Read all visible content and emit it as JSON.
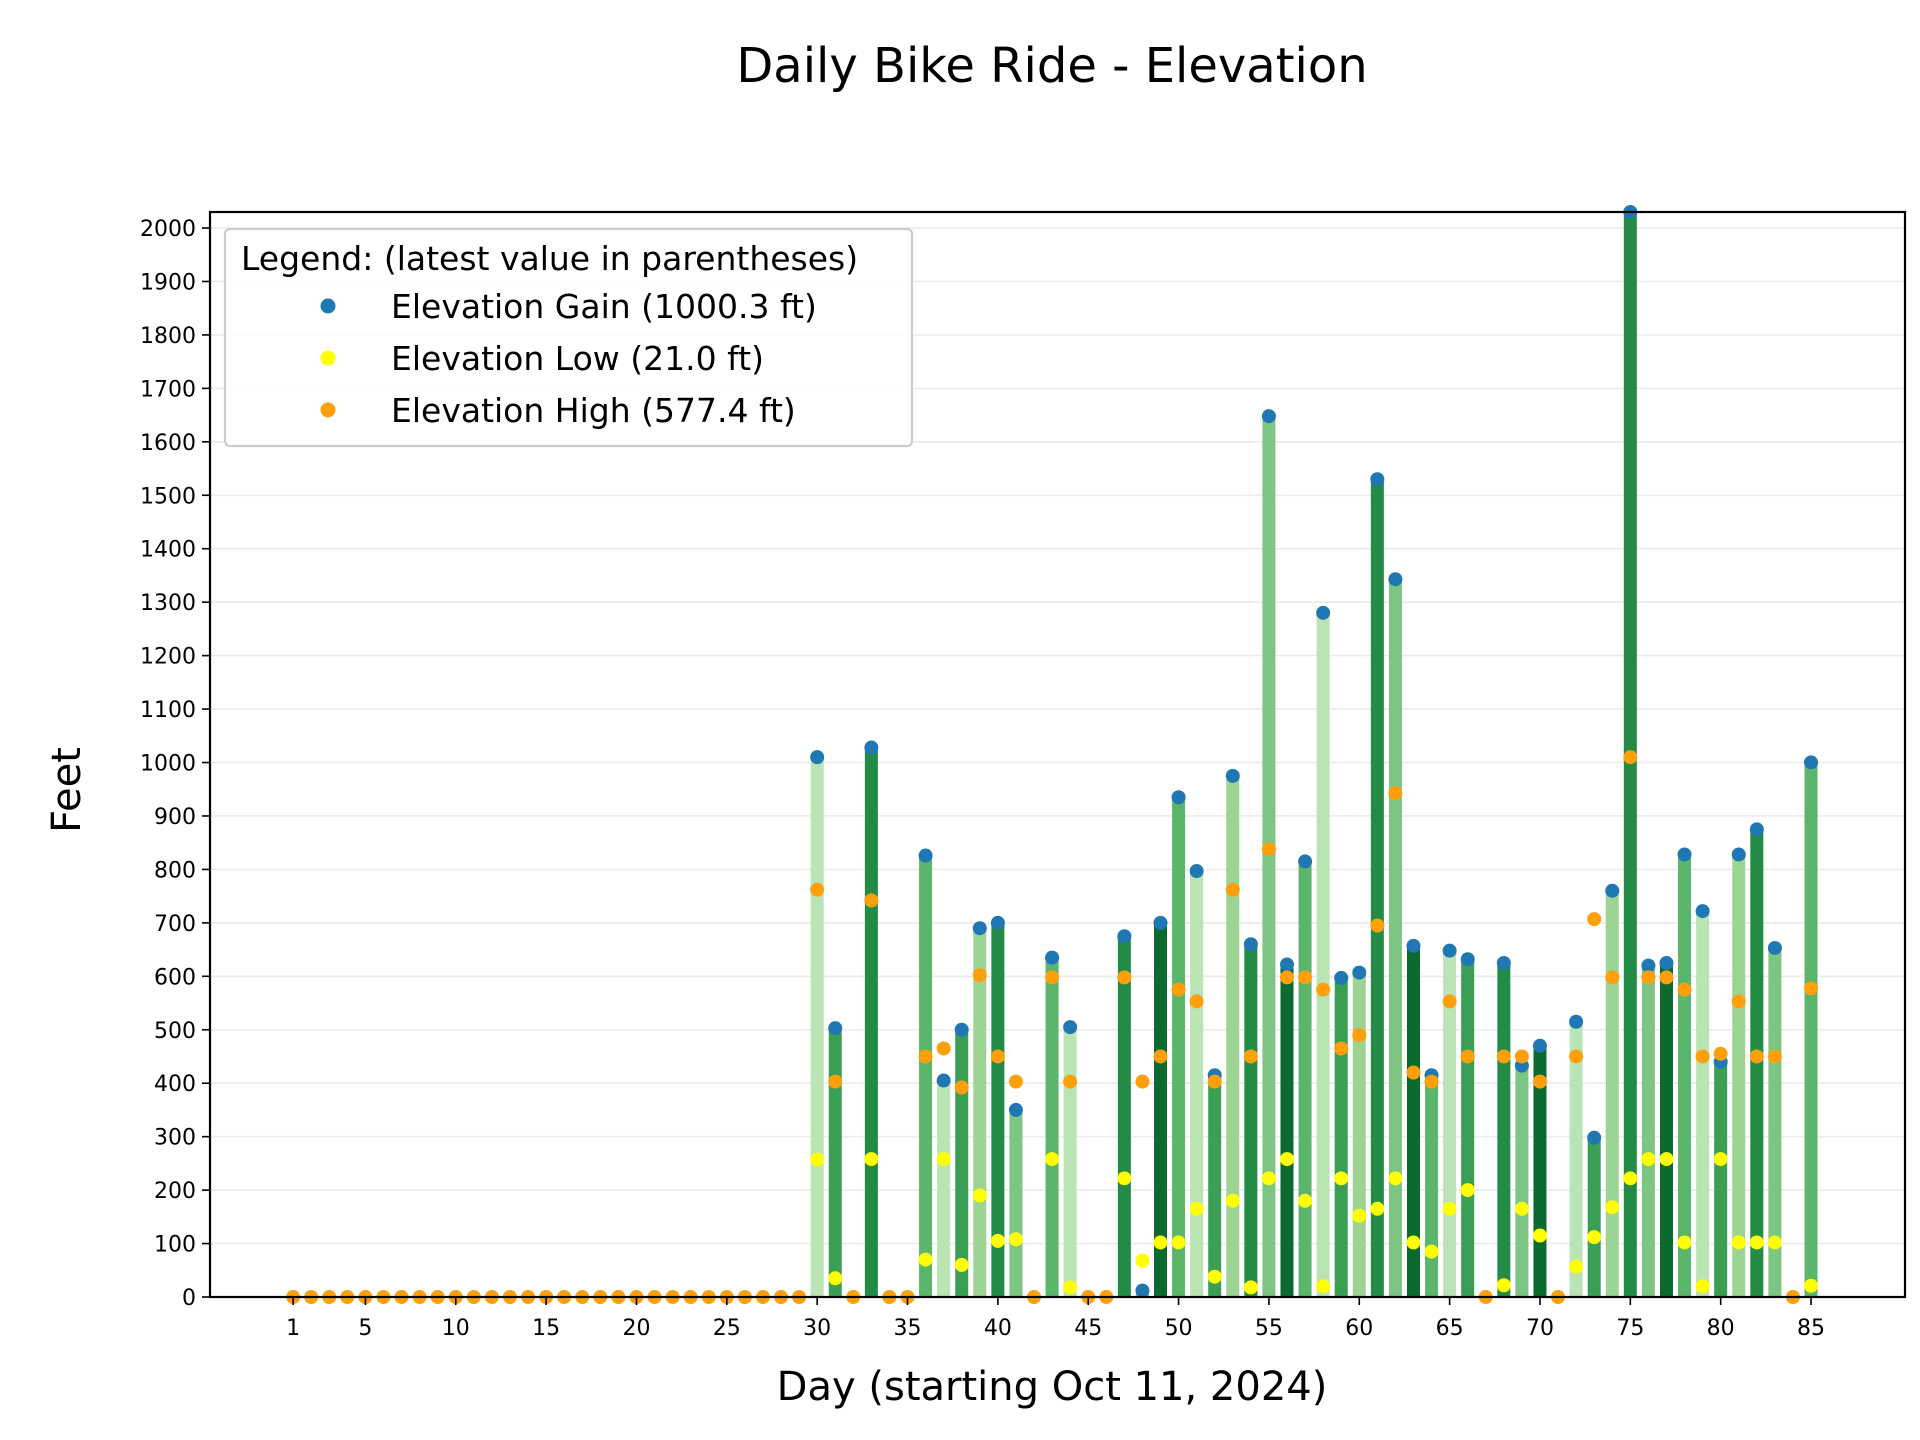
{
  "chart_data": {
    "type": "bar",
    "title": "Daily Bike Ride - Elevation",
    "xlabel": "Day (starting Oct 11, 2024)",
    "ylabel": "Feet",
    "xlim": [
      -3.6,
      90.2
    ],
    "ylim": [
      0,
      2030
    ],
    "x_ticks": [
      1,
      5,
      10,
      15,
      20,
      25,
      30,
      35,
      40,
      45,
      50,
      55,
      60,
      65,
      70,
      75,
      80,
      85
    ],
    "y_ticks": [
      0,
      100,
      200,
      300,
      400,
      500,
      600,
      700,
      800,
      900,
      1000,
      1100,
      1200,
      1300,
      1400,
      1500,
      1600,
      1700,
      1800,
      1900,
      2000
    ],
    "grid": "horizontal",
    "legend": {
      "title": "Legend: (latest value in parentheses)",
      "placement": "upper-left",
      "entries": [
        {
          "label": "Elevation Gain (1000.3 ft)",
          "color": "#1f77b4"
        },
        {
          "label": "Elevation Low (21.0 ft)",
          "color": "#ffff00"
        },
        {
          "label": "Elevation High (577.4 ft)",
          "color": "#ff9f0a"
        }
      ]
    },
    "bar_colors": [
      "#0b6b2e",
      "#238b45",
      "#3a9e55",
      "#5bb56b",
      "#7cc582",
      "#9dd494",
      "#bae4b3"
    ],
    "days": [
      1,
      2,
      3,
      4,
      5,
      6,
      7,
      8,
      9,
      10,
      11,
      12,
      13,
      14,
      15,
      16,
      17,
      18,
      19,
      20,
      21,
      22,
      23,
      24,
      25,
      26,
      27,
      28,
      29,
      30,
      31,
      32,
      33,
      34,
      35,
      36,
      37,
      38,
      39,
      40,
      41,
      42,
      43,
      44,
      45,
      46,
      47,
      48,
      49,
      50,
      51,
      52,
      53,
      54,
      55,
      56,
      57,
      58,
      59,
      60,
      61,
      62,
      63,
      64,
      65,
      66,
      67,
      68,
      69,
      70,
      71,
      72,
      73,
      74,
      75,
      76,
      77,
      78,
      79,
      80,
      81,
      82,
      83,
      84,
      85
    ],
    "series": [
      {
        "name": "Elevation Gain",
        "values": [
          0,
          0,
          0,
          0,
          0,
          0,
          0,
          0,
          0,
          0,
          0,
          0,
          0,
          0,
          0,
          0,
          0,
          0,
          0,
          0,
          0,
          0,
          0,
          0,
          0,
          0,
          0,
          0,
          0,
          1010,
          503,
          0,
          1028,
          0,
          0,
          826,
          405,
          500,
          690,
          700,
          350,
          0,
          635,
          505,
          0,
          0,
          675,
          12,
          700,
          935,
          797,
          415,
          975,
          660,
          1648,
          622,
          815,
          1280,
          597,
          607,
          1530,
          1343,
          657,
          415,
          648,
          632,
          0,
          625,
          433,
          470,
          0,
          515,
          298,
          760,
          2030,
          620,
          625,
          828,
          722,
          440,
          828,
          875,
          653,
          0,
          1000.3
        ]
      },
      {
        "name": "Elevation Low",
        "values": [
          0,
          0,
          0,
          0,
          0,
          0,
          0,
          0,
          0,
          0,
          0,
          0,
          0,
          0,
          0,
          0,
          0,
          0,
          0,
          0,
          0,
          0,
          0,
          0,
          0,
          0,
          0,
          0,
          0,
          257,
          35,
          0,
          258,
          0,
          0,
          70,
          258,
          60,
          190,
          105,
          108,
          0,
          258,
          18,
          0,
          0,
          222,
          68,
          102,
          102,
          165,
          38,
          180,
          18,
          222,
          258,
          180,
          20,
          222,
          152,
          165,
          222,
          102,
          85,
          165,
          200,
          0,
          22,
          165,
          115,
          0,
          57,
          112,
          168,
          222,
          258,
          258,
          102,
          20,
          258,
          102,
          102,
          102,
          0,
          21.0
        ]
      },
      {
        "name": "Elevation High",
        "values": [
          0,
          0,
          0,
          0,
          0,
          0,
          0,
          0,
          0,
          0,
          0,
          0,
          0,
          0,
          0,
          0,
          0,
          0,
          0,
          0,
          0,
          0,
          0,
          0,
          0,
          0,
          0,
          0,
          0,
          762,
          403,
          0,
          742,
          0,
          0,
          450,
          465,
          392,
          602,
          450,
          403,
          0,
          598,
          403,
          0,
          0,
          598,
          403,
          450,
          575,
          553,
          403,
          762,
          450,
          838,
          598,
          598,
          575,
          465,
          490,
          695,
          943,
          420,
          403,
          553,
          450,
          0,
          450,
          450,
          403,
          0,
          450,
          707,
          598,
          1010,
          598,
          598,
          575,
          450,
          455,
          553,
          450,
          450,
          0,
          577.4
        ]
      }
    ]
  }
}
